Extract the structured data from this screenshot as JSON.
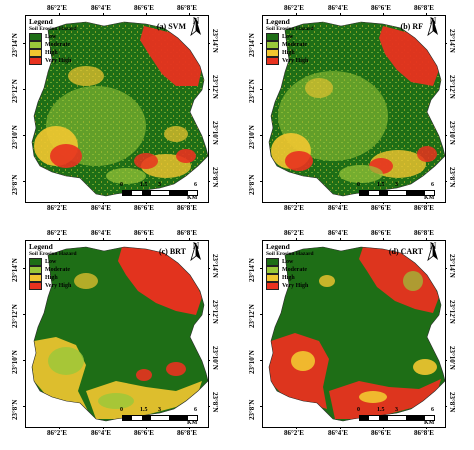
{
  "colors": {
    "low": "#1e6e16",
    "moderate": "#9ac83a",
    "high": "#f2c630",
    "very_high": "#e8321f"
  },
  "longitude_labels": [
    "86°2'E",
    "86°4'E",
    "86°6'E",
    "86°8'E"
  ],
  "latitude_labels": [
    "23°14'N",
    "23°12'N",
    "23°10'N",
    "23°8'N"
  ],
  "legend": {
    "title": "Legend",
    "subtitle": "Soil Erosion Hazard",
    "classes": [
      "Low",
      "Moderate",
      "High",
      "Very High"
    ]
  },
  "north_arrow": {
    "label": "N"
  },
  "scale": {
    "ticks": [
      "0",
      "1.5",
      "3",
      "6"
    ],
    "unit": "KM"
  },
  "panels": [
    {
      "id": "svm",
      "label": "(a) SVM",
      "icon": "map-svm"
    },
    {
      "id": "rf",
      "label": "(b) RF",
      "icon": "map-rf"
    },
    {
      "id": "brt",
      "label": "(c) BRT",
      "icon": "map-brt"
    },
    {
      "id": "cart",
      "label": "(d) CART",
      "icon": "map-cart"
    }
  ]
}
